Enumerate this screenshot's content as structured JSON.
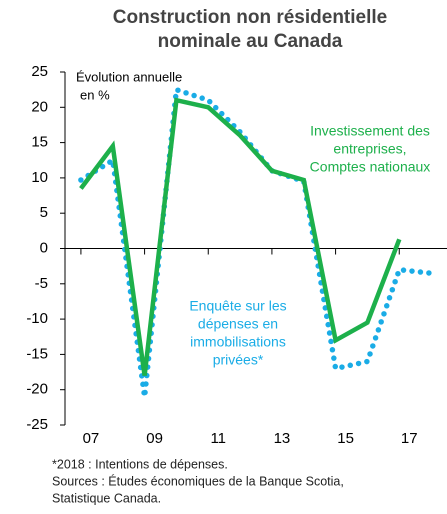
{
  "chart_data": {
    "type": "line",
    "title": "Construction non résidentielle",
    "subtitle": "nominale au Canada",
    "y_label": [
      "Évolution annuelle",
      "en %"
    ],
    "annotations": [
      {
        "lines": [
          "Investissement des",
          "entreprises,",
          "Comptes nationaux"
        ],
        "color": "#1db04b"
      },
      {
        "lines": [
          "Enquête sur les",
          "dépenses en",
          "immobilisations",
          "privées*"
        ],
        "color": "#1aace6"
      }
    ],
    "footnotes": [
      "*2018 : Intentions de dépenses.",
      "Sources : Études économiques de la Banque Scotia,",
      "Statistique Canada."
    ],
    "series": [
      {
        "color": "#1aace6",
        "style": "dotted",
        "x": [
          2007,
          2008,
          2009,
          2010,
          2011,
          2012,
          2013,
          2014,
          2015,
          2016,
          2017,
          2018
        ],
        "values": [
          9.7,
          12.5,
          -21,
          22.5,
          21,
          16.5,
          11,
          9.5,
          -17,
          -16,
          -3,
          -3.5
        ]
      },
      {
        "color": "#1db04b",
        "style": "solid",
        "x": [
          2007,
          2008,
          2009,
          2010,
          2011,
          2012,
          2013,
          2014,
          2015,
          2016,
          2017
        ],
        "values": [
          8.5,
          14.5,
          -18,
          21,
          20,
          16,
          11,
          9.7,
          -13,
          -10.5,
          1.3
        ]
      }
    ],
    "xlim": [
      2006.5,
      2018.5
    ],
    "xticks": [
      {
        "value": 2007,
        "label": "07"
      },
      {
        "value": 2009,
        "label": "09"
      },
      {
        "value": 2011,
        "label": "11"
      },
      {
        "value": 2013,
        "label": "13"
      },
      {
        "value": 2015,
        "label": "15"
      },
      {
        "value": 2017,
        "label": "17"
      }
    ],
    "ylim": [
      -25,
      25
    ],
    "yticks": [
      25,
      20,
      15,
      10,
      5,
      0,
      -5,
      -10,
      -15,
      -20,
      -25
    ]
  }
}
